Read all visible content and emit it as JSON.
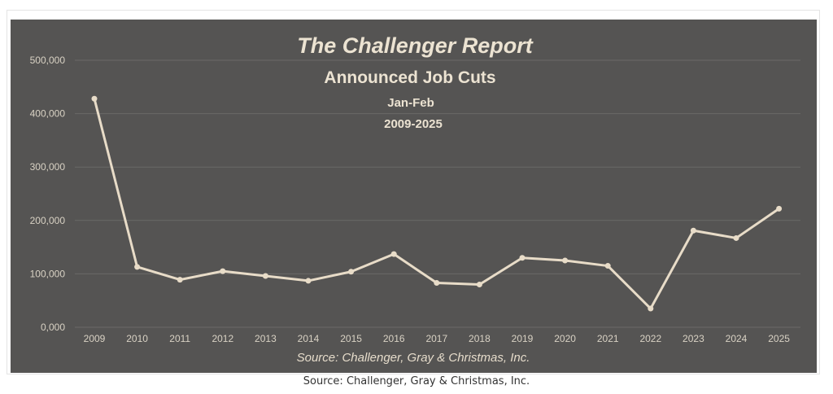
{
  "chart_data": {
    "type": "line",
    "title": "The Challenger Report",
    "subtitle": "Announced Job Cuts",
    "subtitle2": "Jan-Feb",
    "subtitle3": "2009-2025",
    "source": "Source: Challenger, Gray & Christmas, Inc.",
    "categories": [
      "2009",
      "2010",
      "2011",
      "2012",
      "2013",
      "2014",
      "2015",
      "2016",
      "2017",
      "2018",
      "2019",
      "2020",
      "2021",
      "2022",
      "2023",
      "2024",
      "2025"
    ],
    "series": [
      {
        "values": [
          428000,
          113000,
          89000,
          105000,
          96000,
          87000,
          104000,
          137000,
          83000,
          80000,
          130000,
          125000,
          115000,
          35000,
          181000,
          167000,
          222000
        ]
      }
    ],
    "yticks": [
      "0,000",
      "100,000",
      "200,000",
      "300,000",
      "400,000",
      "500,000"
    ],
    "ylim": [
      0,
      500000
    ],
    "grid": true,
    "colors": {
      "panel": "#555453",
      "line": "#e8dcc8",
      "grid": "#6a6967",
      "text": "#ece3d2"
    }
  },
  "footer": {
    "source": "Source: Challenger, Gray & Christmas, Inc."
  }
}
